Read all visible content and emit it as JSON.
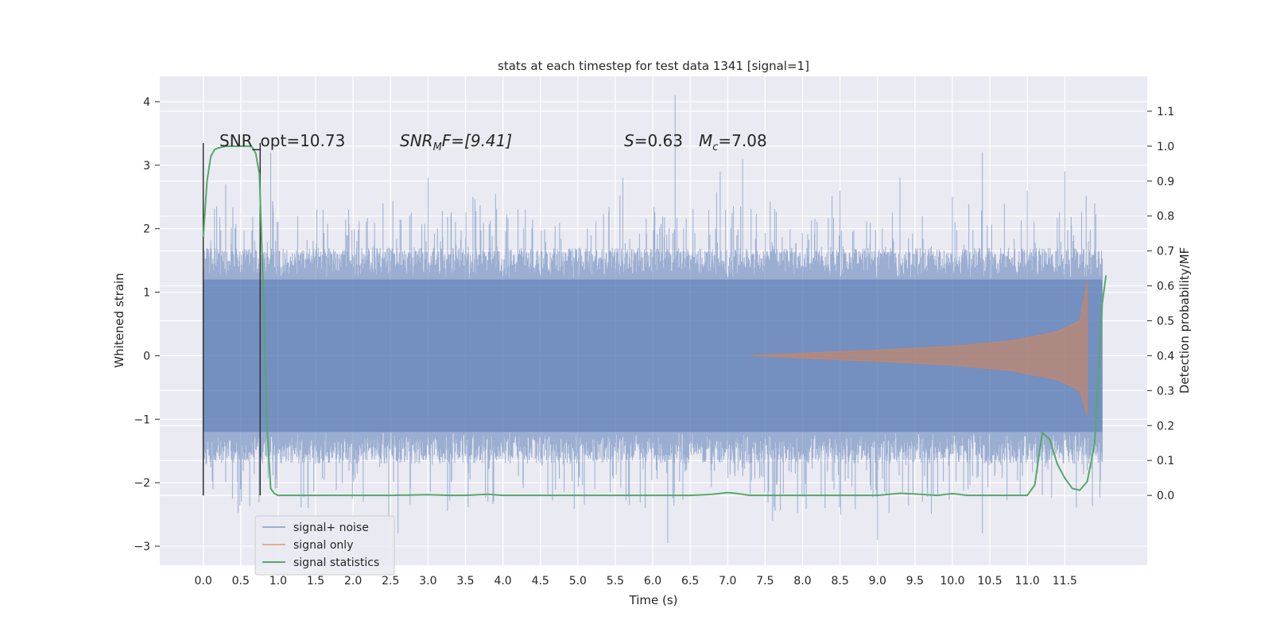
{
  "chart_data": {
    "type": "line",
    "title": "stats at each timestep for test data 1341 [signal=1]",
    "xlabel": "Time (s)",
    "ylabel": "Whitened strain",
    "ylabel_right": "Detection probability/MF",
    "xlim": [
      -0.58,
      12.6
    ],
    "ylim": [
      -3.3,
      4.4
    ],
    "ylim_right": [
      -0.2,
      1.2
    ],
    "xticks": [
      "0.0",
      "0.5",
      "1.0",
      "1.5",
      "2.0",
      "2.5",
      "3.0",
      "3.5",
      "4.0",
      "4.5",
      "5.0",
      "5.5",
      "6.0",
      "6.5",
      "7.0",
      "7.5",
      "8.0",
      "8.5",
      "9.0",
      "9.5",
      "10.0",
      "10.5",
      "11.0",
      "11.5"
    ],
    "yticks": [
      "−3",
      "−2",
      "−1",
      "0",
      "1",
      "2",
      "3",
      "4"
    ],
    "yticks_right": [
      "0.0",
      "0.1",
      "0.2",
      "0.3",
      "0.4",
      "0.5",
      "0.6",
      "0.7",
      "0.8",
      "0.9",
      "1.0",
      "1.1"
    ],
    "grid": true,
    "legend_position": "lower-left",
    "annotations": {
      "snr_opt": "SNR_opt=10.73",
      "snr_mf_label": "SNR",
      "snr_mf_sub": "M",
      "snr_mf_rest": "F=[9.41]",
      "s_label": "S",
      "s_value": "=0.63",
      "mc_label": "M",
      "mc_sub": "c",
      "mc_value": "=7.08"
    },
    "vertical_markers": [
      0.0,
      0.76
    ],
    "series": [
      {
        "name": "signal+ noise",
        "color": "#4c72b0",
        "axis": "left",
        "noise_envelope": {
          "x_range": [
            0.0,
            12.0
          ],
          "band": 1.2,
          "spike_max": [
            [
              0.3,
              2.7
            ],
            [
              0.9,
              3.2
            ],
            [
              1.6,
              2.3
            ],
            [
              2.4,
              2.4
            ],
            [
              3.0,
              2.8
            ],
            [
              3.6,
              2.5
            ],
            [
              4.3,
              2.3
            ],
            [
              5.6,
              2.8
            ],
            [
              6.3,
              4.1
            ],
            [
              6.9,
              2.9
            ],
            [
              7.2,
              3.1
            ],
            [
              8.5,
              2.6
            ],
            [
              9.3,
              2.8
            ],
            [
              10.0,
              2.5
            ],
            [
              10.4,
              3.2
            ],
            [
              11.0,
              2.6
            ],
            [
              11.5,
              2.9
            ],
            [
              11.9,
              2.4
            ]
          ],
          "spike_min": [
            [
              0.5,
              -2.1
            ],
            [
              1.4,
              -2.4
            ],
            [
              2.6,
              -2.8
            ],
            [
              3.8,
              -2.3
            ],
            [
              4.6,
              -2.2
            ],
            [
              5.9,
              -2.4
            ],
            [
              6.2,
              -2.95
            ],
            [
              7.6,
              -2.6
            ],
            [
              8.3,
              -2.4
            ],
            [
              9.0,
              -2.9
            ],
            [
              9.6,
              -2.3
            ],
            [
              10.4,
              -2.8
            ],
            [
              11.2,
              -2.2
            ],
            [
              11.8,
              -1.8
            ]
          ]
        }
      },
      {
        "name": "signal only",
        "color": "#dd8452",
        "axis": "left",
        "chirp": {
          "start": 7.3,
          "peak": 11.8,
          "amplitudes": [
            [
              7.3,
              0.0
            ],
            [
              8.0,
              0.04
            ],
            [
              9.0,
              0.09
            ],
            [
              10.0,
              0.15
            ],
            [
              10.8,
              0.24
            ],
            [
              11.4,
              0.38
            ],
            [
              11.7,
              0.55
            ],
            [
              11.8,
              1.2
            ]
          ],
          "end_min": -0.95
        }
      },
      {
        "name": "signal statistics",
        "color": "#55a868",
        "axis": "right",
        "x": [
          0.0,
          0.05,
          0.1,
          0.15,
          0.2,
          0.3,
          0.4,
          0.5,
          0.6,
          0.65,
          0.7,
          0.75,
          0.8,
          0.85,
          0.9,
          0.95,
          1.0,
          1.5,
          2.0,
          2.5,
          3.0,
          3.3,
          3.5,
          3.8,
          4.0,
          4.5,
          5.0,
          5.5,
          6.0,
          6.5,
          6.8,
          7.0,
          7.1,
          7.3,
          7.5,
          8.0,
          8.5,
          9.0,
          9.3,
          9.5,
          9.8,
          10.0,
          10.2,
          10.5,
          10.8,
          11.0,
          11.1,
          11.2,
          11.3,
          11.4,
          11.5,
          11.6,
          11.7,
          11.8,
          11.9,
          11.95,
          12.0,
          12.05
        ],
        "y": [
          0.74,
          0.9,
          0.97,
          0.99,
          0.995,
          1.0,
          1.0,
          1.0,
          1.0,
          0.998,
          0.98,
          0.92,
          0.6,
          0.2,
          0.02,
          0.005,
          0.0,
          0.0,
          0.0,
          0.0,
          0.002,
          0.0,
          0.0,
          0.003,
          0.0,
          0.0,
          0.0,
          0.0,
          0.0,
          0.0,
          0.003,
          0.008,
          0.006,
          0.0,
          0.0,
          0.0,
          0.0,
          0.0,
          0.006,
          0.004,
          0.0,
          0.005,
          0.0,
          0.0,
          0.0,
          0.0,
          0.03,
          0.18,
          0.16,
          0.09,
          0.05,
          0.02,
          0.015,
          0.04,
          0.15,
          0.35,
          0.55,
          0.63
        ]
      }
    ]
  }
}
